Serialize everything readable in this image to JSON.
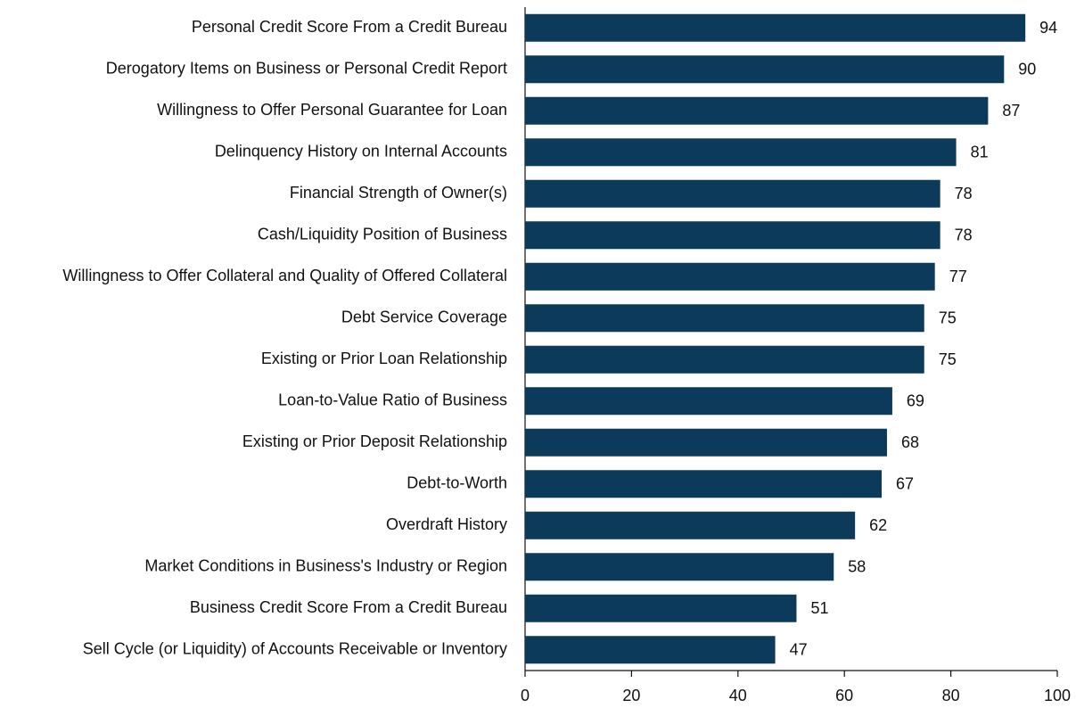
{
  "chart_data": {
    "type": "bar",
    "orientation": "horizontal",
    "categories": [
      "Personal Credit Score From a Credit Bureau",
      "Derogatory Items on Business or Personal Credit Report",
      "Willingness to Offer Personal Guarantee for Loan",
      "Delinquency History on Internal Accounts",
      "Financial Strength of Owner(s)",
      "Cash/Liquidity Position of Business",
      "Willingness to Offer Collateral and Quality of Offered Collateral",
      "Debt Service Coverage",
      "Existing or Prior Loan Relationship",
      "Loan-to-Value Ratio of Business",
      "Existing or Prior Deposit Relationship",
      "Debt-to-Worth",
      "Overdraft History",
      "Market Conditions in Business's Industry or Region",
      "Business Credit Score From a Credit Bureau",
      "Sell Cycle (or Liquidity) of Accounts Receivable or Inventory"
    ],
    "values": [
      94,
      90,
      87,
      81,
      78,
      78,
      77,
      75,
      75,
      69,
      68,
      67,
      62,
      58,
      51,
      47
    ],
    "color": "#0b3a5b",
    "xlim": [
      0,
      100
    ],
    "xticks": [
      0,
      20,
      40,
      60,
      80,
      100
    ],
    "grid": false
  }
}
